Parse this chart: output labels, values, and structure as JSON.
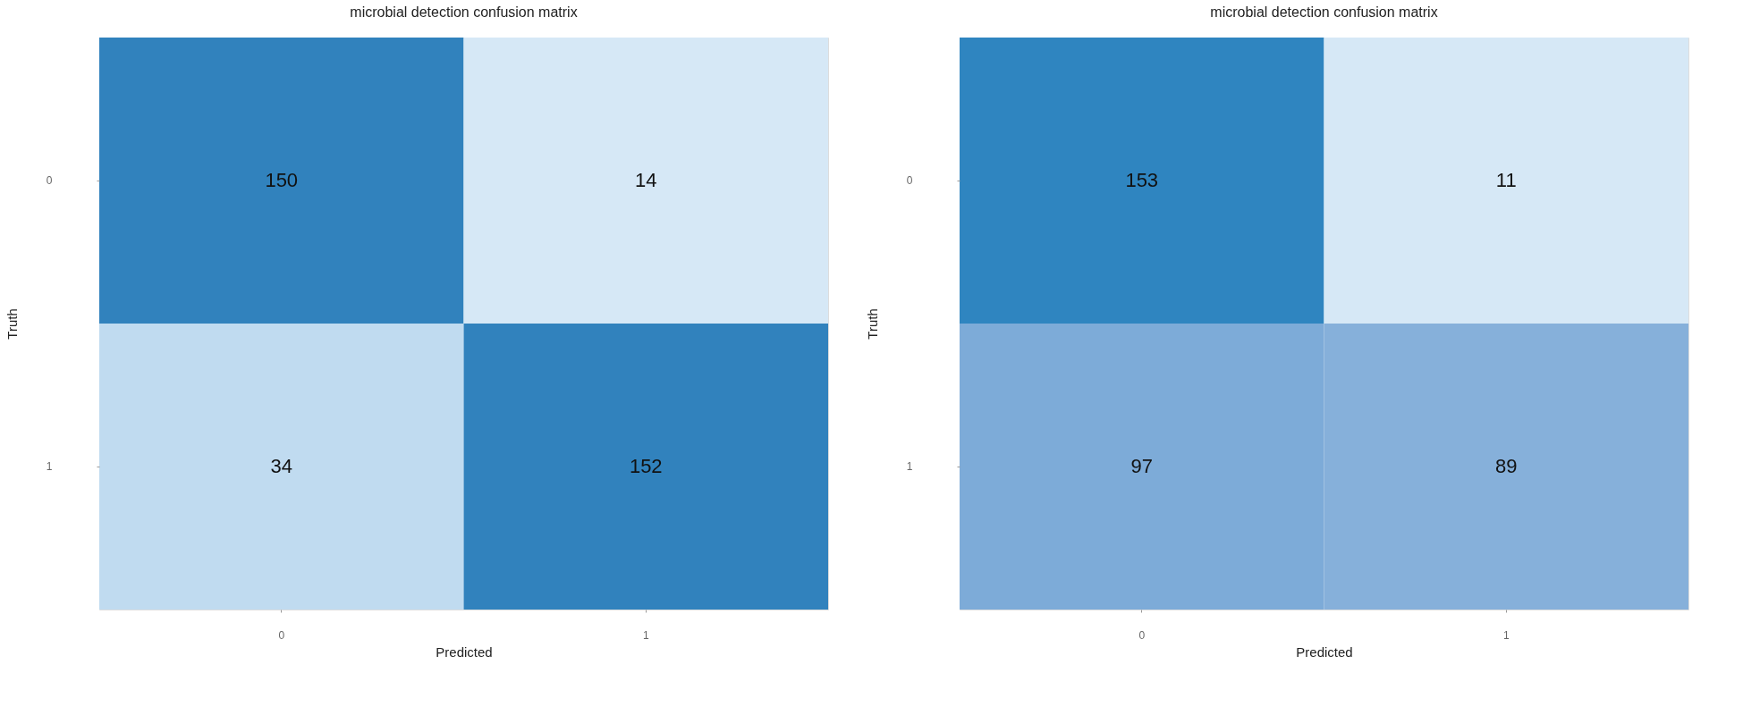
{
  "chart_data": [
    {
      "type": "heatmap",
      "title": "microbial detection confusion matrix",
      "xlabel": "Predicted",
      "ylabel": "Truth",
      "categories": [
        "0",
        "1"
      ],
      "y_categories": [
        "0",
        "1"
      ],
      "cells": [
        [
          150,
          14
        ],
        [
          34,
          152
        ]
      ],
      "colors": [
        "#3182bd",
        "#d6e8f6",
        "#c0dbf0",
        "#3182bd"
      ],
      "data_labels": true,
      "grid": false
    },
    {
      "type": "heatmap",
      "title": "microbial detection confusion matrix",
      "xlabel": "Predicted",
      "ylabel": "Truth",
      "categories": [
        "0",
        "1"
      ],
      "y_categories": [
        "0",
        "1"
      ],
      "cells": [
        [
          153,
          11
        ],
        [
          97,
          89
        ]
      ],
      "colors": [
        "#2f85c0",
        "#d6e8f6",
        "#7dabd8",
        "#86b0da"
      ],
      "data_labels": true,
      "grid": false
    }
  ]
}
